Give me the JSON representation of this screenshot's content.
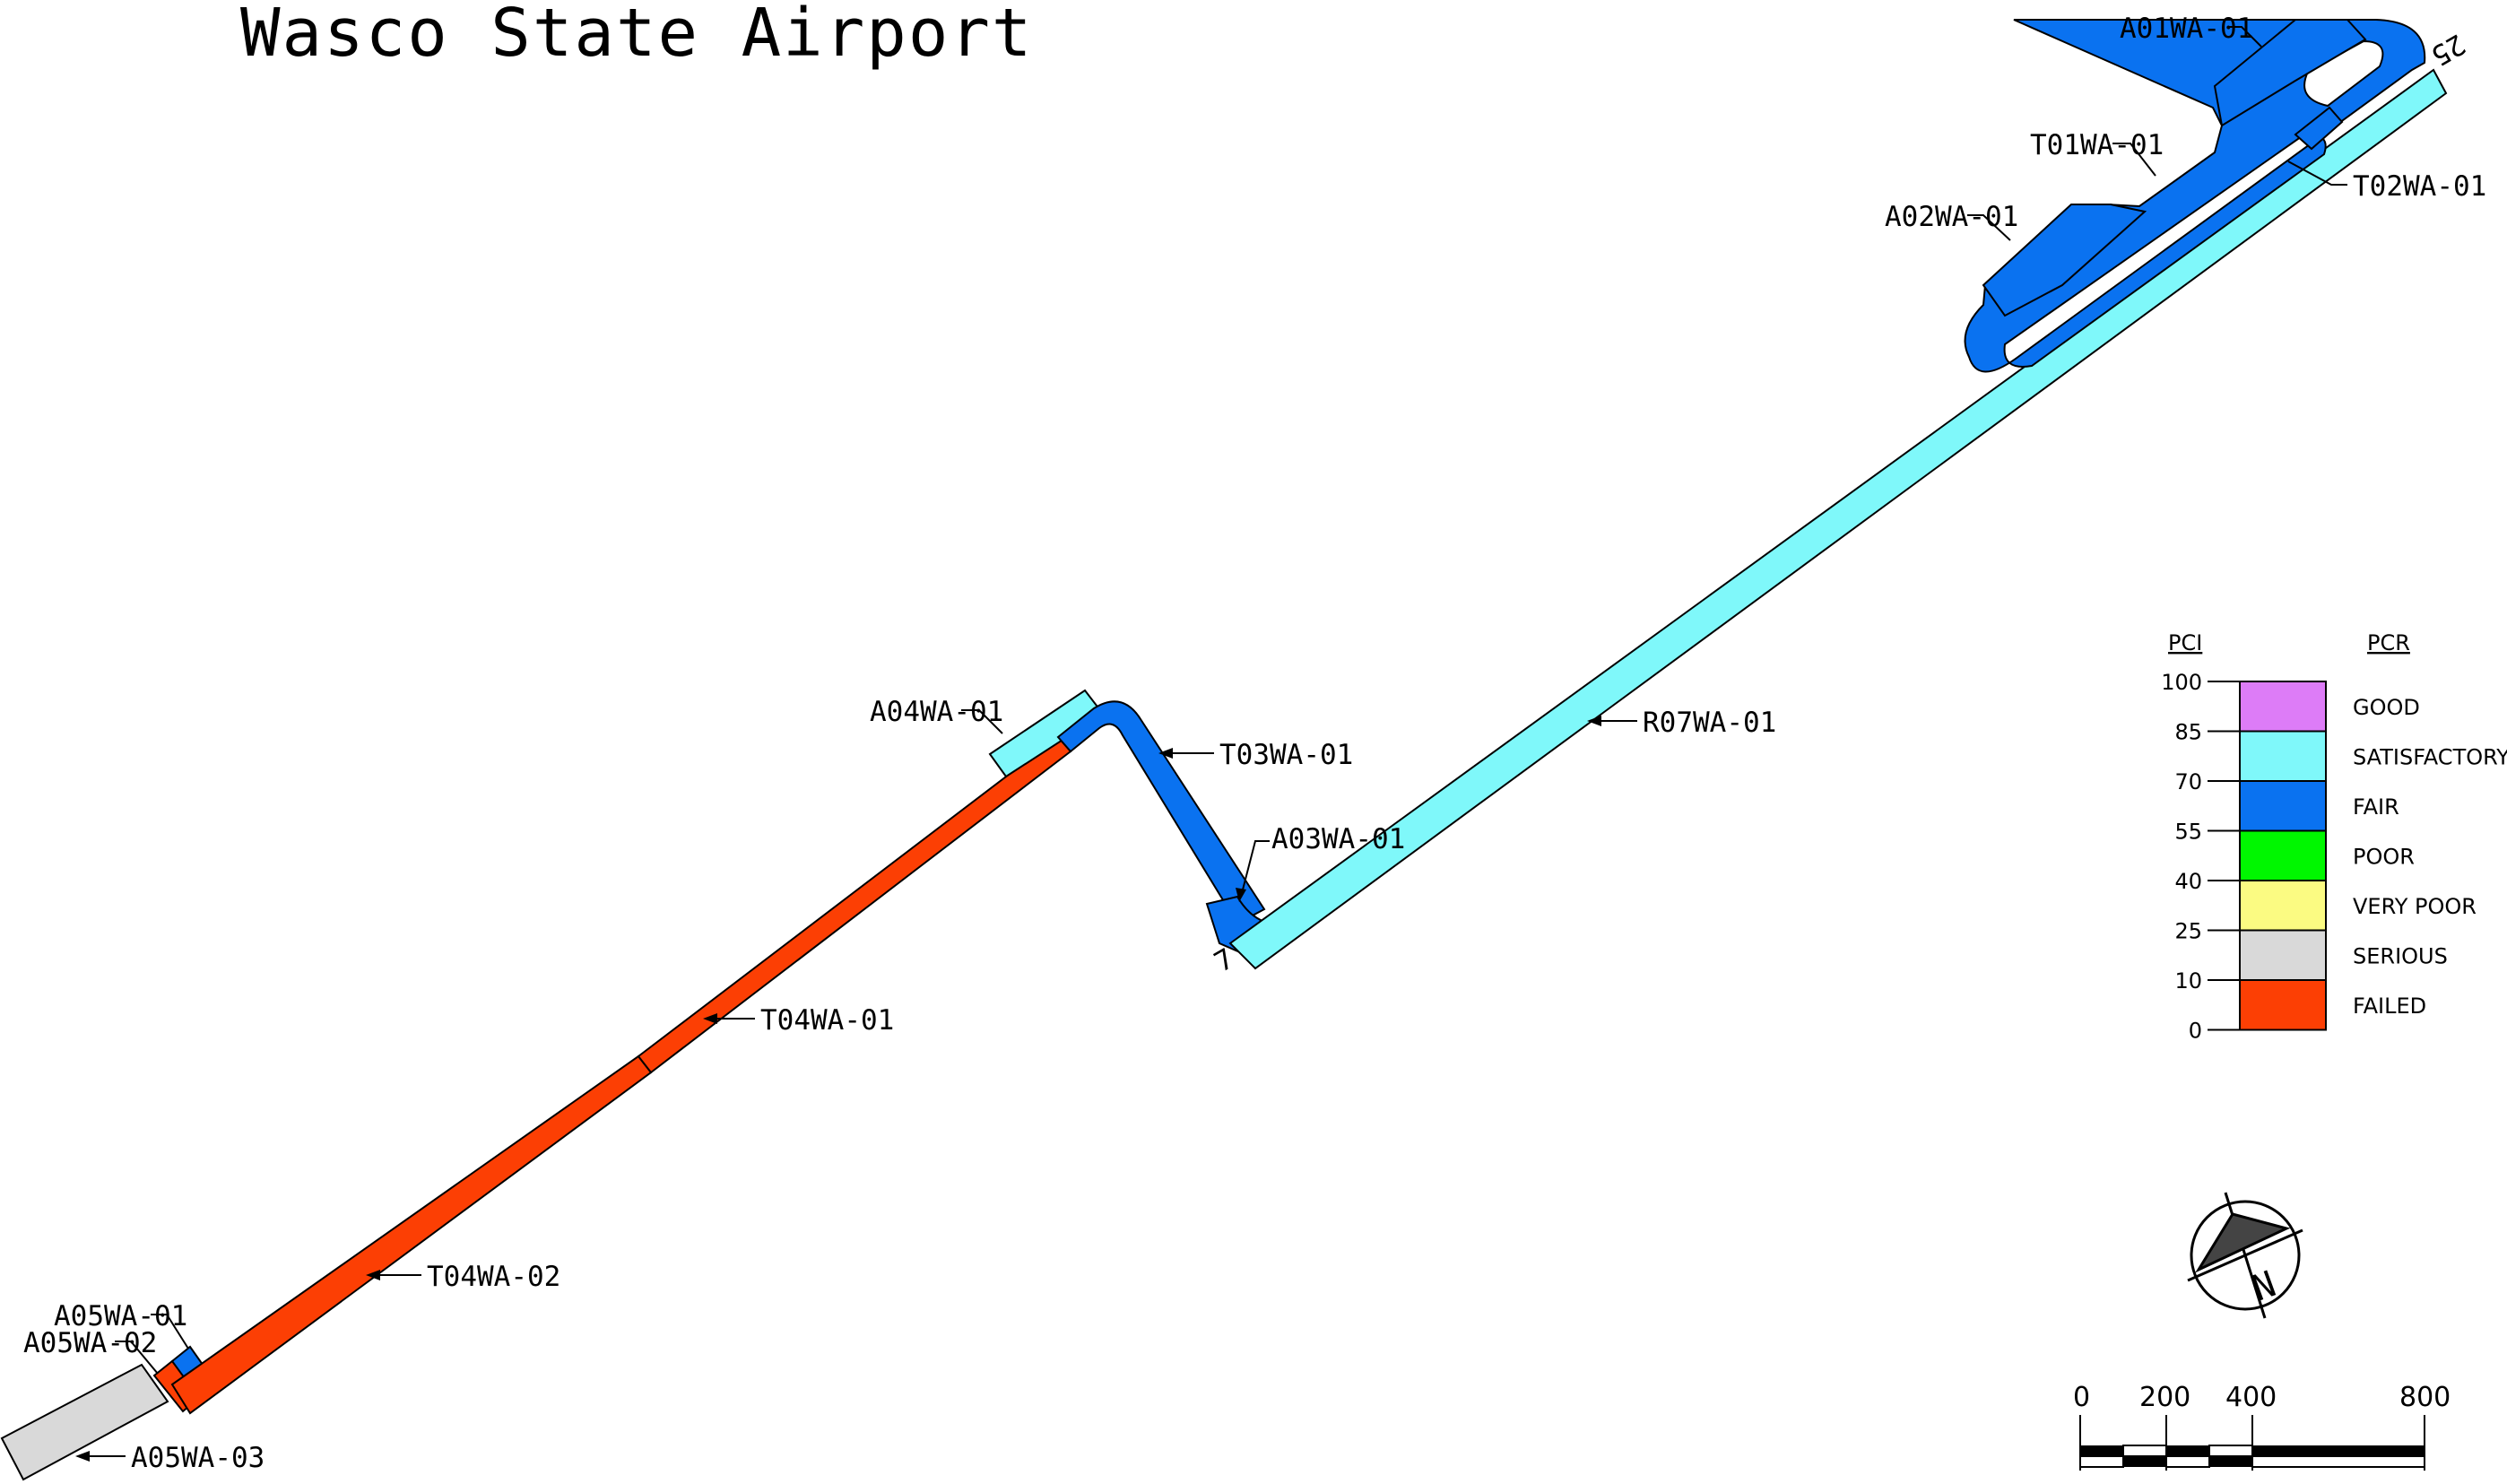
{
  "title": "Wasco State Airport",
  "colors": {
    "GOOD": "#dd7cf7",
    "SATISFACTORY": "#7ff8fa",
    "FAIR": "#0a72f0",
    "POOR": "#00f700",
    "VERY POOR": "#fbfb82",
    "SERIOUS": "#d9d9d9",
    "FAILED": "#fc3f04"
  },
  "sections": [
    {
      "id": "A01WA-01",
      "condition": "FAIR"
    },
    {
      "id": "T01WA-01",
      "condition": "FAIR"
    },
    {
      "id": "T02WA-01",
      "condition": "FAIR"
    },
    {
      "id": "A02WA-01",
      "condition": "FAIR"
    },
    {
      "id": "R07WA-01",
      "condition": "SATISFACTORY"
    },
    {
      "id": "A04WA-01",
      "condition": "SATISFACTORY"
    },
    {
      "id": "T03WA-01",
      "condition": "FAIR"
    },
    {
      "id": "A03WA-01",
      "condition": "FAIR"
    },
    {
      "id": "T04WA-01",
      "condition": "FAILED"
    },
    {
      "id": "T04WA-02",
      "condition": "FAILED"
    },
    {
      "id": "A05WA-01",
      "condition": "FAIR"
    },
    {
      "id": "A05WA-02",
      "condition": "FAILED"
    },
    {
      "id": "A05WA-03",
      "condition": "SERIOUS"
    }
  ],
  "runway_ends": [
    "25",
    "7"
  ],
  "legend": {
    "pci_header": "PCI",
    "pcr_header": "PCR",
    "pci_ticks": [
      "100",
      "85",
      "70",
      "55",
      "40",
      "25",
      "10",
      "0"
    ],
    "pcr_items": [
      {
        "label": "GOOD",
        "color": "#dd7cf7"
      },
      {
        "label": "SATISFACTORY",
        "color": "#7ff8fa"
      },
      {
        "label": "FAIR",
        "color": "#0a72f0"
      },
      {
        "label": "POOR",
        "color": "#00f700"
      },
      {
        "label": "VERY POOR",
        "color": "#fbfb82"
      },
      {
        "label": "SERIOUS",
        "color": "#d9d9d9"
      },
      {
        "label": "FAILED",
        "color": "#fc3f04"
      }
    ]
  },
  "north_arrow": {
    "letter": "N"
  },
  "scale_bar": {
    "labels": [
      "0",
      "200",
      "400",
      "800"
    ]
  }
}
